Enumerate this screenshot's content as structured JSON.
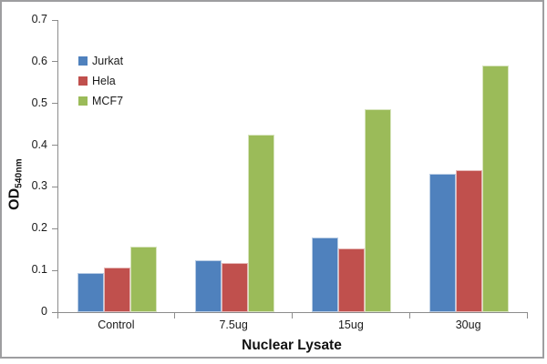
{
  "chart_data": {
    "type": "bar",
    "title": "",
    "xlabel": "Nuclear Lysate",
    "ylabel": "OD",
    "ylabel_subscript": "540nm",
    "categories": [
      "Control",
      "7.5ug",
      "15ug",
      "30ug"
    ],
    "series": [
      {
        "name": "Jurkat",
        "color": "#4F81BD",
        "border_color": "#B8CCE4",
        "values": [
          0.093,
          0.125,
          0.178,
          0.332
        ]
      },
      {
        "name": "Hela",
        "color": "#C0504D",
        "border_color": "#E6B8B7",
        "values": [
          0.106,
          0.118,
          0.152,
          0.341
        ]
      },
      {
        "name": "MCF7",
        "color": "#9BBB59",
        "border_color": "#D7E4BD",
        "values": [
          0.156,
          0.425,
          0.487,
          0.59
        ]
      }
    ],
    "y_axis": {
      "min": 0,
      "max": 0.7,
      "step": 0.1,
      "tick_labels": [
        "0",
        "0.1",
        "0.2",
        "0.3",
        "0.4",
        "0.5",
        "0.6",
        "0.7"
      ]
    },
    "x_axis": {
      "tick_count": 5
    },
    "legend": {
      "position": "inside-top-left",
      "entries": [
        "Jurkat",
        "Hela",
        "MCF7"
      ]
    },
    "grid": false,
    "colors": {
      "axis": "#8C8C8C",
      "text": "#1A1A1A",
      "frame": "#9E9EA0",
      "background": "#FFFFFF"
    }
  }
}
